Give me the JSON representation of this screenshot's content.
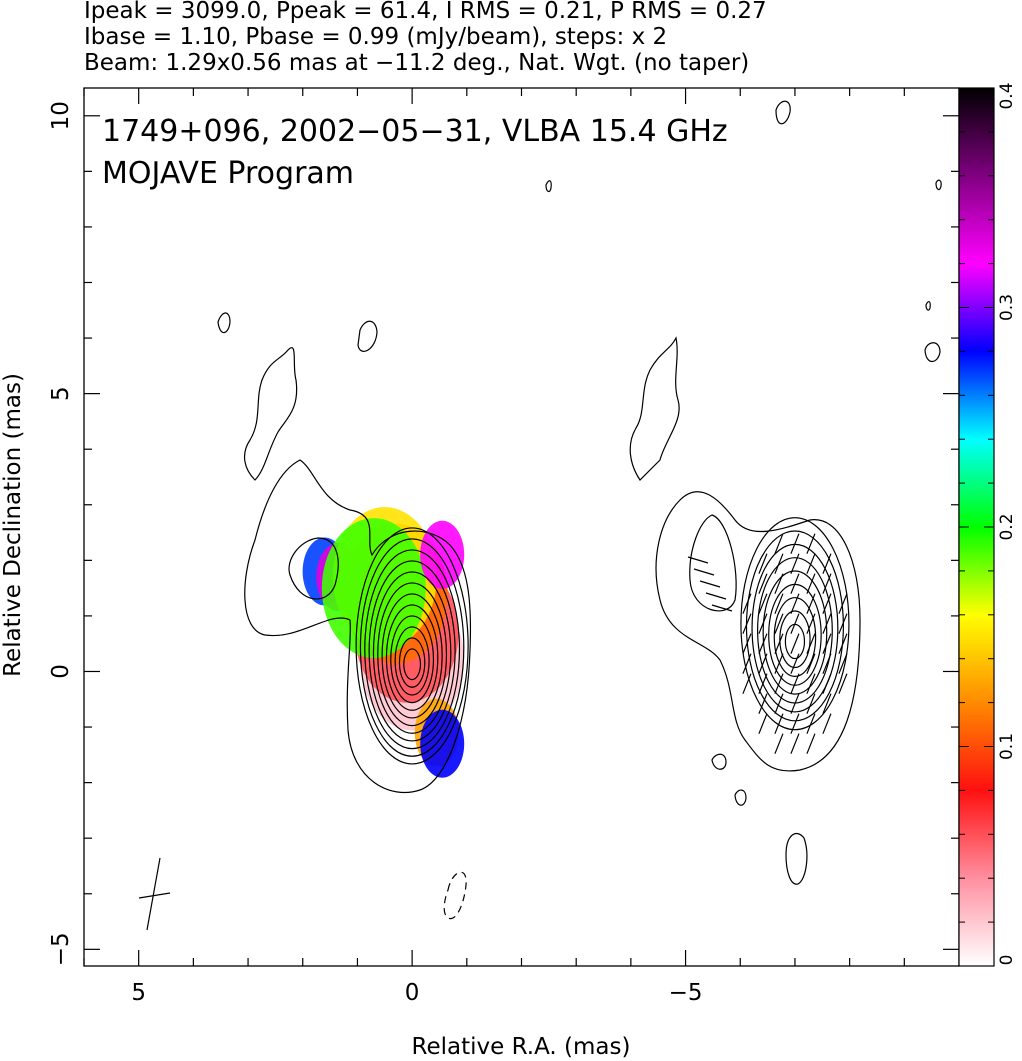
{
  "header": {
    "line1": "Ipeak = 3099.0, Ppeak = 61.4, I RMS = 0.21, P RMS = 0.27",
    "line2": "Ibase = 1.10, Pbase = 0.99 (mJy/beam), steps: x 2",
    "line3": "Beam: 1.29x0.56 mas at −11.2 deg., Nat. Wgt. (no taper)"
  },
  "chart_data": {
    "type": "heatmap",
    "title": "1749+096, 2002−05−31, VLBA 15.4 GHz",
    "subtitle": "MOJAVE Program",
    "xlabel": "Relative R.A. (mas)",
    "ylabel": "Relative Declination (mas)",
    "xlim": [
      6,
      -10
    ],
    "ylim": [
      -5.3,
      10.5
    ],
    "x_ticks": [
      "5",
      "0",
      "−5"
    ],
    "x_tick_values": [
      5,
      0,
      -5
    ],
    "y_ticks": [
      "−5",
      "0",
      "5",
      "10"
    ],
    "y_tick_values": [
      -5,
      0,
      5,
      10
    ],
    "colorbar": {
      "min": 0,
      "max": 0.4,
      "ticks": [
        "0",
        "0.1",
        "0.2",
        "0.3",
        "0.4"
      ],
      "tick_values": [
        0,
        0.1,
        0.2,
        0.3,
        0.4
      ],
      "stops": [
        "#ffffff",
        "#ff8fa0",
        "#ff1010",
        "#ff8a00",
        "#ffff00",
        "#00ff00",
        "#00ffff",
        "#0000ff",
        "#ff00ff",
        "#800080",
        "#000000"
      ]
    },
    "left_panel": {
      "core_center": [
        0.0,
        0.1
      ],
      "contour_levels": 12,
      "fractional_polarization_regions": [
        {
          "ra": 1.6,
          "dec": 1.8,
          "value": 0.27
        },
        {
          "ra": 1.35,
          "dec": 1.7,
          "value": 0.33
        },
        {
          "ra": 0.0,
          "dec": 0.2,
          "value": 0.02
        },
        {
          "ra": 0.1,
          "dec": 0.7,
          "value": 0.06
        },
        {
          "ra": 0.3,
          "dec": 1.4,
          "value": 0.11
        },
        {
          "ra": 0.5,
          "dec": 1.7,
          "value": 0.15
        },
        {
          "ra": 0.7,
          "dec": 1.5,
          "value": 0.19
        },
        {
          "ra": -0.55,
          "dec": 2.1,
          "value": 0.32
        },
        {
          "ra": -0.45,
          "dec": -1.1,
          "value": 0.13
        },
        {
          "ra": -0.55,
          "dec": -1.3,
          "value": 0.28
        }
      ],
      "beam": {
        "major_mas": 1.29,
        "minor_mas": 0.56,
        "pa_deg": -11.2
      }
    },
    "right_panel": {
      "core_center": [
        -7.0,
        0.5
      ],
      "contour_levels": 9,
      "evpa_ticks": true
    }
  }
}
